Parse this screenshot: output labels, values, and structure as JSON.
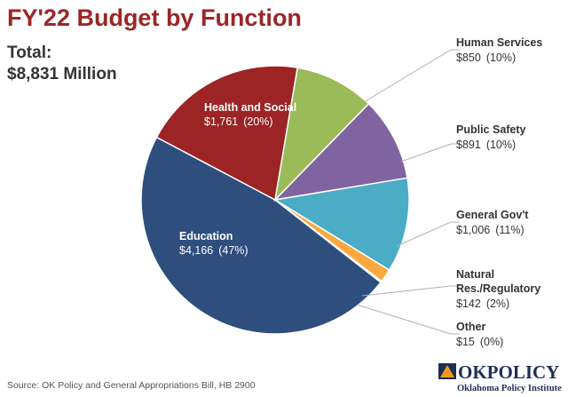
{
  "chart_data": {
    "type": "pie",
    "title": "FY'22 Budget by Function",
    "total_label": "Total:",
    "total_value": "$8,831 Million",
    "slices": [
      {
        "name": "Education",
        "amount": "$4,166",
        "pct_label": "(47%)",
        "value": 4166,
        "color": "#2e4e7e"
      },
      {
        "name": "Health and Social",
        "amount": "$1,761",
        "pct_label": "(20%)",
        "value": 1761,
        "color": "#9c2424"
      },
      {
        "name": "Human Services",
        "amount": "$850",
        "pct_label": "(10%)",
        "value": 850,
        "color": "#9bbb59"
      },
      {
        "name": "Public Safety",
        "amount": "$891",
        "pct_label": "(10%)",
        "value": 891,
        "color": "#8064a2"
      },
      {
        "name": "General Gov't",
        "amount": "$1,006",
        "pct_label": "(11%)",
        "value": 1006,
        "color": "#4bacc6"
      },
      {
        "name_lines": [
          "Natural",
          "Res./Regulatory"
        ],
        "amount": "$142",
        "pct_label": "(2%)",
        "value": 142,
        "color": "#f9a940"
      },
      {
        "name": "Other",
        "amount": "$15",
        "pct_label": "(0%)",
        "value": 15,
        "color": "#d9d9d9"
      }
    ],
    "source": "Source: OK Policy and General Appropriations Bill, HB 2900"
  },
  "logo": {
    "text_ok": "OK",
    "text_policy": "POLICY",
    "subtitle": "Oklahoma Policy Institute",
    "colors": {
      "navy": "#1f2f56",
      "orange": "#f39a1e"
    }
  }
}
